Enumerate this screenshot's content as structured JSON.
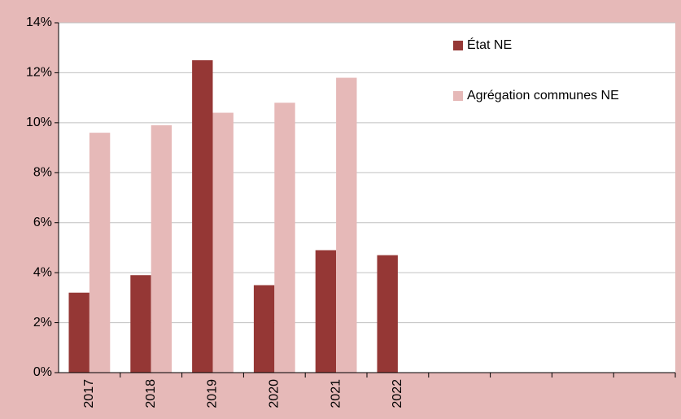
{
  "chart_data": {
    "type": "bar",
    "categories": [
      "2017",
      "2018",
      "2019",
      "2020",
      "2021",
      "2022",
      null,
      null,
      null,
      null
    ],
    "series": [
      {
        "name": "État NE",
        "color": "#953735",
        "values": [
          3.2,
          3.9,
          12.5,
          3.5,
          4.9,
          4.7,
          null,
          null,
          null,
          null
        ]
      },
      {
        "name": "Agrégation communes NE",
        "color": "#e6b9b8",
        "values": [
          9.6,
          9.9,
          10.4,
          10.8,
          11.8,
          null,
          null,
          null,
          null,
          null
        ]
      }
    ],
    "ylim": [
      0,
      14
    ],
    "yticks": [
      {
        "value": 0,
        "label": "0%"
      },
      {
        "value": 2,
        "label": "2%"
      },
      {
        "value": 4,
        "label": "4%"
      },
      {
        "value": 6,
        "label": "6%"
      },
      {
        "value": 8,
        "label": "8%"
      },
      {
        "value": 10,
        "label": "10%"
      },
      {
        "value": 12,
        "label": "12%"
      },
      {
        "value": 14,
        "label": "14%"
      }
    ],
    "grid": true,
    "legend": "top-right",
    "background": "#e6b9b8"
  }
}
